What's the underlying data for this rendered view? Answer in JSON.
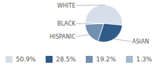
{
  "chart_data": {
    "type": "pie",
    "categories": [
      "WHITE",
      "ASIAN",
      "HISPANIC",
      "BLACK"
    ],
    "values": [
      50.9,
      28.5,
      19.2,
      1.3
    ],
    "value_labels": [
      "50.9%",
      "28.5%",
      "19.2%",
      "1.3%"
    ],
    "colors": [
      "#d6dee9",
      "#2f5b89",
      "#7290b0",
      "#a4b9cf"
    ],
    "legend": "bottom"
  }
}
